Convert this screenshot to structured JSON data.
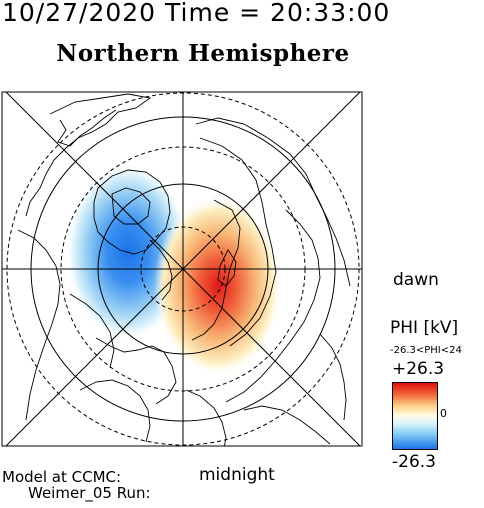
{
  "header": {
    "timestamp": "10/27/2020 Time = 20:33:00",
    "title": "Northern Hemisphere"
  },
  "map": {
    "labels": {
      "dawn": "dawn",
      "midnight": "midnight"
    },
    "colors": {
      "positive": "#e01010",
      "negative": "#1a73e8",
      "neutral": "#fffbe8"
    }
  },
  "legend": {
    "title": "PHI [kV]",
    "range": "-26.3<PHI<24",
    "max": "+26.3",
    "mid": "0",
    "min": "-26.3"
  },
  "footer": {
    "model": "Model at CCMC:",
    "run": "Weimer_05 Run:"
  }
}
